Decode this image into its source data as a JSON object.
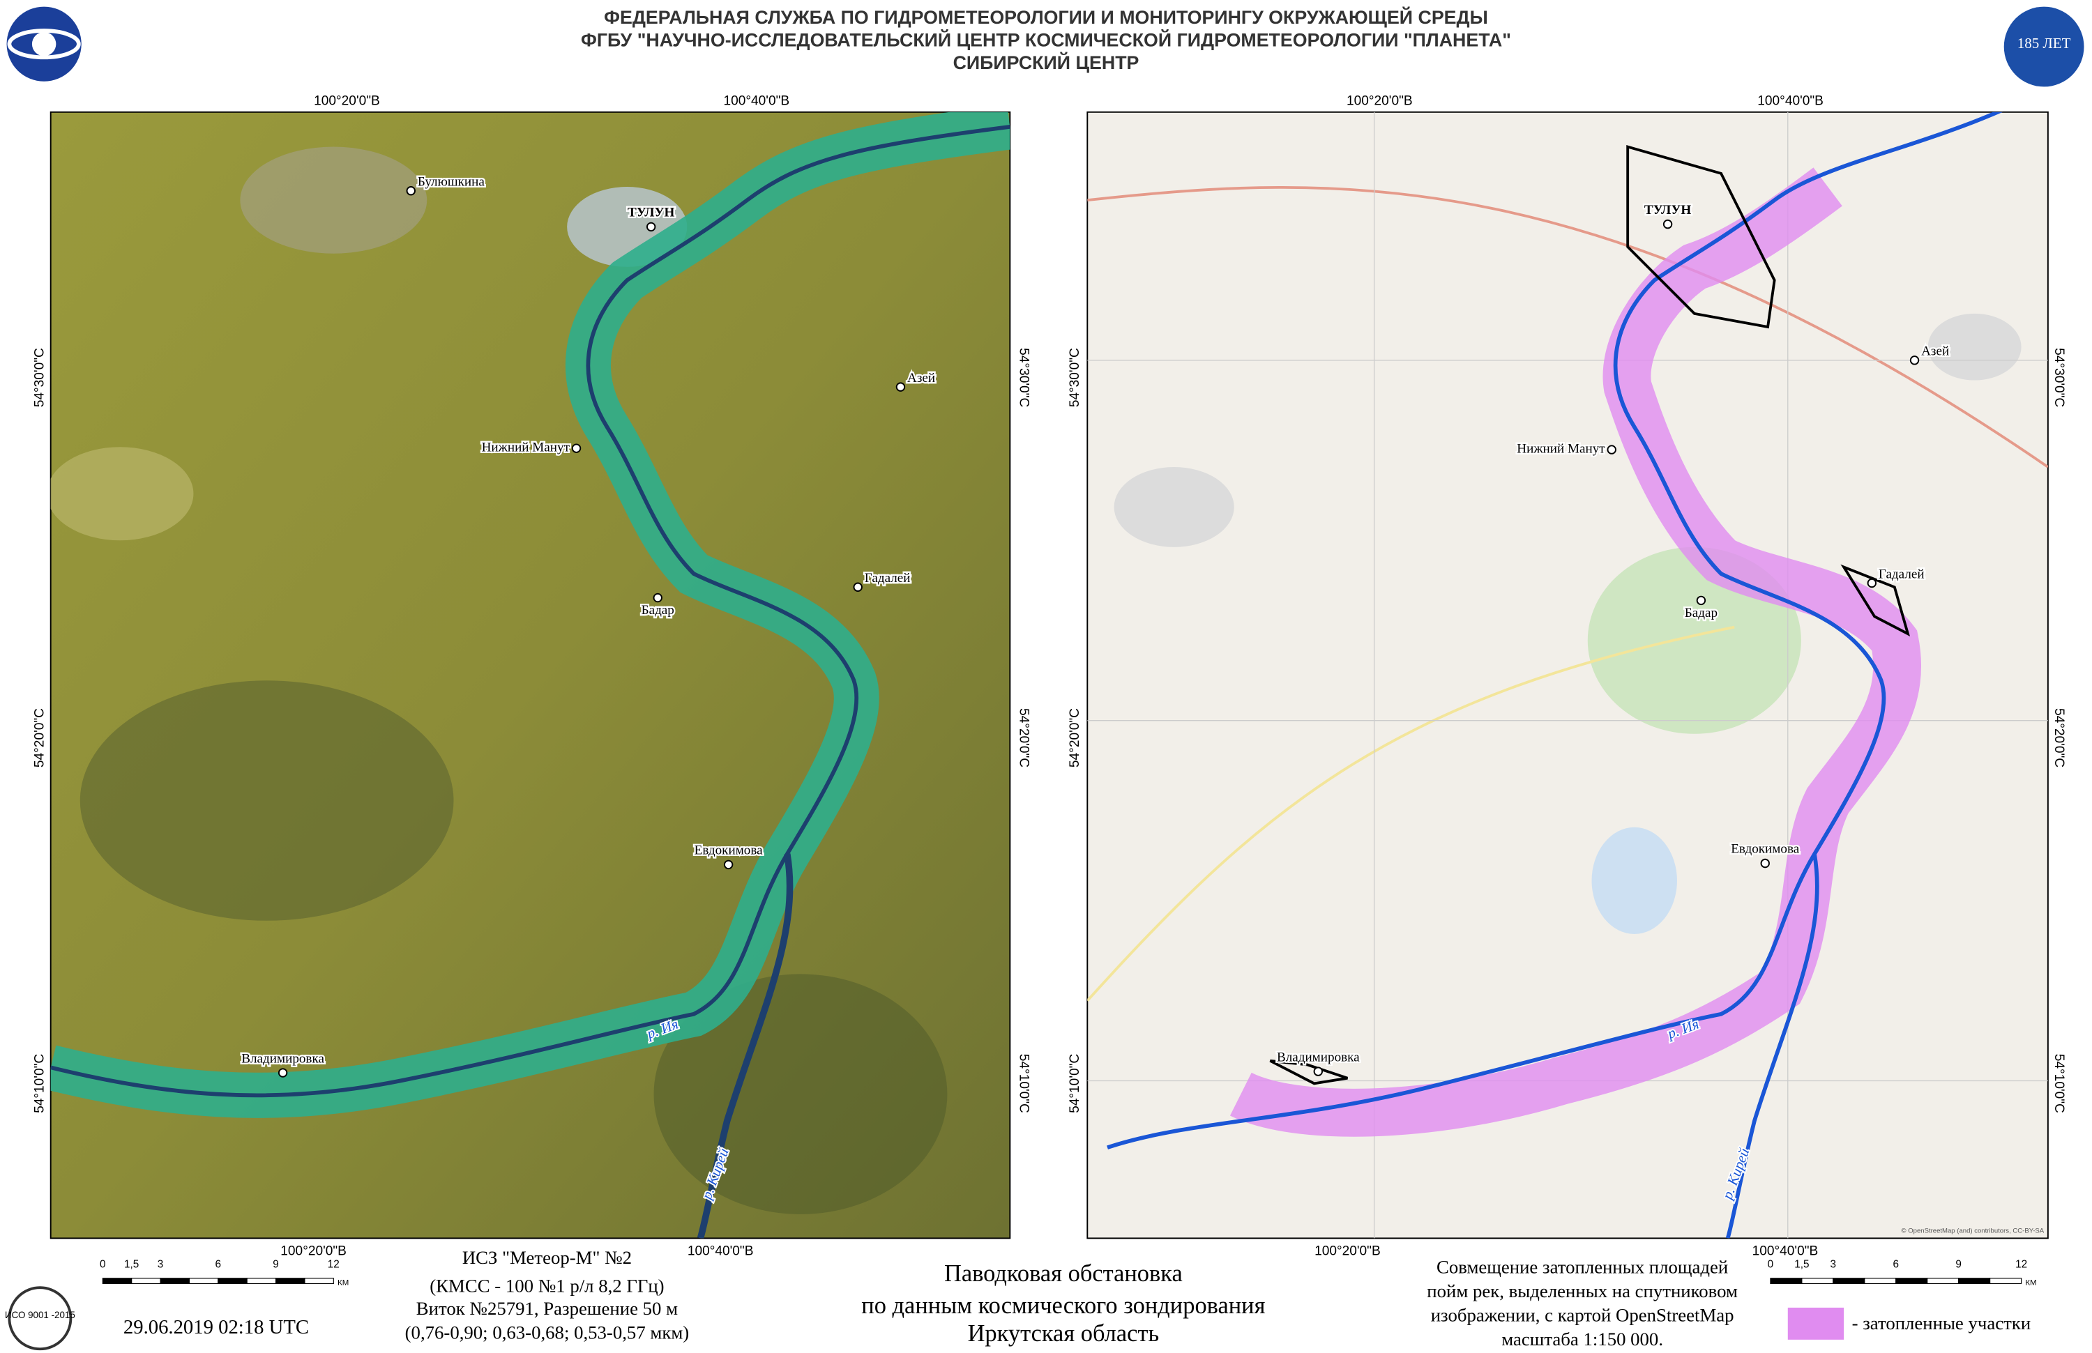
{
  "header": {
    "lines": [
      "ФЕДЕРАЛЬНАЯ СЛУЖБА ПО ГИДРОМЕТЕОРОЛОГИИ И МОНИТОРИНГУ ОКРУЖАЮЩЕЙ СРЕДЫ",
      "ФГБУ \"НАУЧНО-ИССЛЕДОВАТЕЛЬСКИЙ ЦЕНТР КОСМИЧЕСКОЙ ГИДРОМЕТЕОРОЛОГИИ \"ПЛАНЕТА\"",
      "СИБИРСКИЙ ЦЕНТР"
    ],
    "anniversary": "185 ЛЕТ"
  },
  "left_map": {
    "top_lon": [
      "100°20'0\"В",
      "100°40'0\"В"
    ],
    "bottom_lon": [
      "100°20'0\"В",
      "100°40'0\"В"
    ],
    "lat": [
      "54°30'0\"С",
      "54°20'0\"С",
      "54°10'0\"С"
    ],
    "places": [
      "Булюшкина",
      "ТУЛУН",
      "Азей",
      "Нижний Манут",
      "Гадалей",
      "Бадар",
      "Евдокимова",
      "Владимировка"
    ],
    "rivers": [
      "р. Ия",
      "р. Кирей"
    ]
  },
  "right_map": {
    "top_lon": [
      "100°20'0\"В",
      "100°40'0\"В"
    ],
    "bottom_lon": [
      "100°20'0\"В",
      "100°40'0\"В"
    ],
    "lat": [
      "54°30'0\"С",
      "54°20'0\"С",
      "54°10'0\"С"
    ],
    "places": [
      "ТУЛУН",
      "Азей",
      "Нижний Манут",
      "Гадалей",
      "Бадар",
      "Евдокимова",
      "Владимировка"
    ],
    "rivers": [
      "р. Ия",
      "р. Кирей"
    ],
    "attribution": "© OpenStreetMap (and) contributors, CC-BY-SA"
  },
  "scale_bar": {
    "labels": [
      "0",
      "1,5",
      "3",
      "6",
      "9",
      "12"
    ],
    "unit": "КМ"
  },
  "iso_badge": "ИСО 9001 -2015",
  "date": "29.06.2019  02:18 UTC",
  "satellite_info": [
    "ИСЗ \"Метеор-М\" №2",
    "(КМСС - 100 №1 р/л 8,2 ГГц)",
    "Виток №25791, Разрешение 50 м",
    "(0,76-0,90; 0,63-0,68; 0,53-0,57 мкм)"
  ],
  "center_title": [
    "Паводковая обстановка",
    "по данным космического зондирования",
    "Иркутская область"
  ],
  "description": [
    "Совмещение затопленных площадей",
    "пойм рек, выделенных на спутниковом",
    "изображении, с картой OpenStreetMap",
    "масштаба 1:150 000."
  ],
  "legend": {
    "flooded": "- затопленные участки"
  }
}
